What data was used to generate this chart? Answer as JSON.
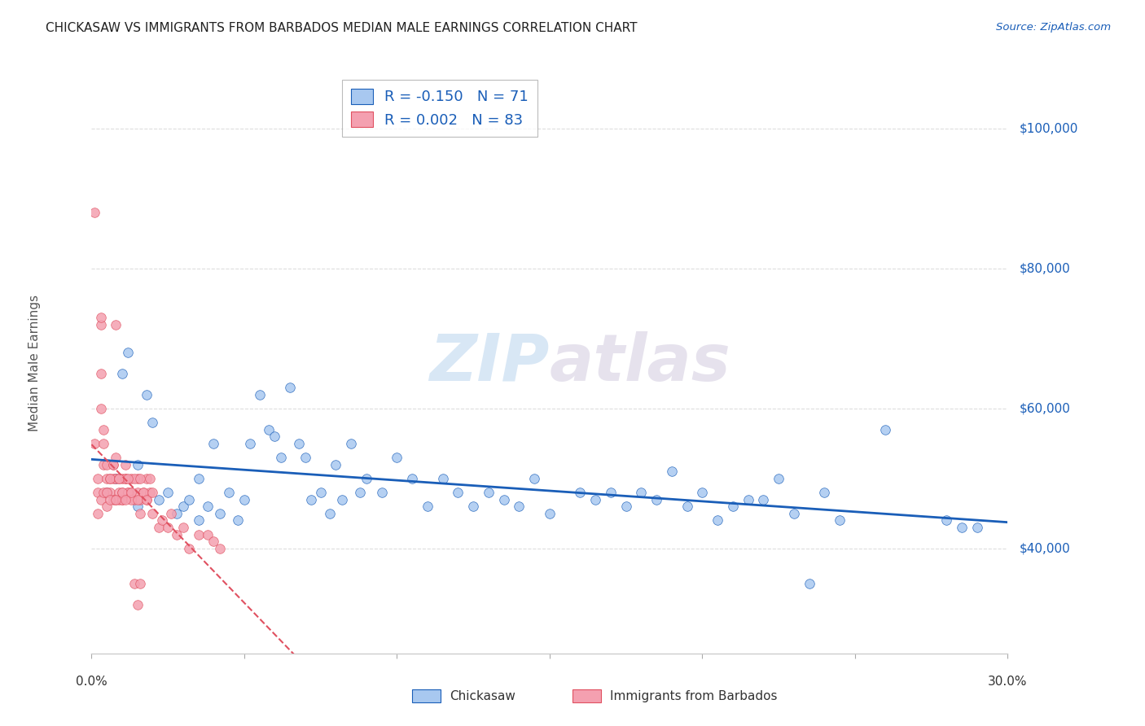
{
  "title": "CHICKASAW VS IMMIGRANTS FROM BARBADOS MEDIAN MALE EARNINGS CORRELATION CHART",
  "source": "Source: ZipAtlas.com",
  "ylabel": "Median Male Earnings",
  "right_yticks": [
    40000,
    60000,
    80000,
    100000
  ],
  "right_ytick_labels": [
    "$40,000",
    "$60,000",
    "$80,000",
    "$100,000"
  ],
  "chickasaw_color": "#a8c8f0",
  "barbados_color": "#f4a0b0",
  "chickasaw_line_color": "#1a5eb8",
  "barbados_line_color": "#e05060",
  "legend_R_chickasaw": "-0.150",
  "legend_N_chickasaw": "71",
  "legend_R_barbados": "0.002",
  "legend_N_barbados": "83",
  "watermark_zip": "ZIP",
  "watermark_atlas": "atlas",
  "background_color": "#ffffff",
  "xmin": 0.0,
  "xmax": 0.3,
  "ymin": 25000,
  "ymax": 108000,
  "chickasaw_x": [
    0.005,
    0.008,
    0.01,
    0.012,
    0.015,
    0.015,
    0.018,
    0.02,
    0.022,
    0.025,
    0.028,
    0.03,
    0.032,
    0.035,
    0.035,
    0.038,
    0.04,
    0.042,
    0.045,
    0.048,
    0.05,
    0.052,
    0.055,
    0.058,
    0.06,
    0.062,
    0.065,
    0.068,
    0.07,
    0.072,
    0.075,
    0.078,
    0.08,
    0.082,
    0.085,
    0.088,
    0.09,
    0.095,
    0.1,
    0.105,
    0.11,
    0.115,
    0.12,
    0.125,
    0.13,
    0.135,
    0.14,
    0.145,
    0.15,
    0.16,
    0.165,
    0.17,
    0.175,
    0.18,
    0.185,
    0.19,
    0.195,
    0.2,
    0.205,
    0.21,
    0.215,
    0.22,
    0.225,
    0.23,
    0.235,
    0.24,
    0.245,
    0.26,
    0.28,
    0.285,
    0.29
  ],
  "chickasaw_y": [
    48000,
    50000,
    65000,
    68000,
    46000,
    52000,
    62000,
    58000,
    47000,
    48000,
    45000,
    46000,
    47000,
    44000,
    50000,
    46000,
    55000,
    45000,
    48000,
    44000,
    47000,
    55000,
    62000,
    57000,
    56000,
    53000,
    63000,
    55000,
    53000,
    47000,
    48000,
    45000,
    52000,
    47000,
    55000,
    48000,
    50000,
    48000,
    53000,
    50000,
    46000,
    50000,
    48000,
    46000,
    48000,
    47000,
    46000,
    50000,
    45000,
    48000,
    47000,
    48000,
    46000,
    48000,
    47000,
    51000,
    46000,
    48000,
    44000,
    46000,
    47000,
    47000,
    50000,
    45000,
    35000,
    48000,
    44000,
    57000,
    44000,
    43000,
    43000
  ],
  "barbados_x": [
    0.001,
    0.001,
    0.002,
    0.002,
    0.003,
    0.003,
    0.003,
    0.004,
    0.004,
    0.005,
    0.005,
    0.005,
    0.006,
    0.006,
    0.007,
    0.007,
    0.008,
    0.008,
    0.008,
    0.009,
    0.009,
    0.01,
    0.01,
    0.01,
    0.011,
    0.011,
    0.012,
    0.013,
    0.013,
    0.014,
    0.015,
    0.015,
    0.016,
    0.016,
    0.017,
    0.018,
    0.018,
    0.019,
    0.02,
    0.022,
    0.023,
    0.025,
    0.026,
    0.028,
    0.03,
    0.032,
    0.035,
    0.038,
    0.04,
    0.042,
    0.002,
    0.003,
    0.004,
    0.005,
    0.006,
    0.007,
    0.008,
    0.009,
    0.01,
    0.011,
    0.012,
    0.013,
    0.014,
    0.015,
    0.016,
    0.017,
    0.018,
    0.019,
    0.02,
    0.003,
    0.004,
    0.005,
    0.006,
    0.007,
    0.008,
    0.009,
    0.01,
    0.011,
    0.012,
    0.013,
    0.014,
    0.015,
    0.016
  ],
  "barbados_y": [
    88000,
    55000,
    50000,
    48000,
    72000,
    65000,
    60000,
    55000,
    52000,
    50000,
    48000,
    52000,
    50000,
    48000,
    52000,
    50000,
    47000,
    72000,
    50000,
    48000,
    47000,
    48000,
    50000,
    47000,
    52000,
    50000,
    48000,
    50000,
    48000,
    47000,
    48000,
    50000,
    47000,
    45000,
    48000,
    47000,
    50000,
    48000,
    45000,
    43000,
    44000,
    43000,
    45000,
    42000,
    43000,
    40000,
    42000,
    42000,
    41000,
    40000,
    45000,
    47000,
    48000,
    46000,
    50000,
    47000,
    53000,
    50000,
    47000,
    50000,
    48000,
    47000,
    50000,
    47000,
    50000,
    48000,
    47000,
    50000,
    48000,
    73000,
    57000,
    48000,
    47000,
    52000,
    47000,
    50000,
    48000,
    47000,
    50000,
    48000,
    35000,
    32000,
    35000
  ]
}
